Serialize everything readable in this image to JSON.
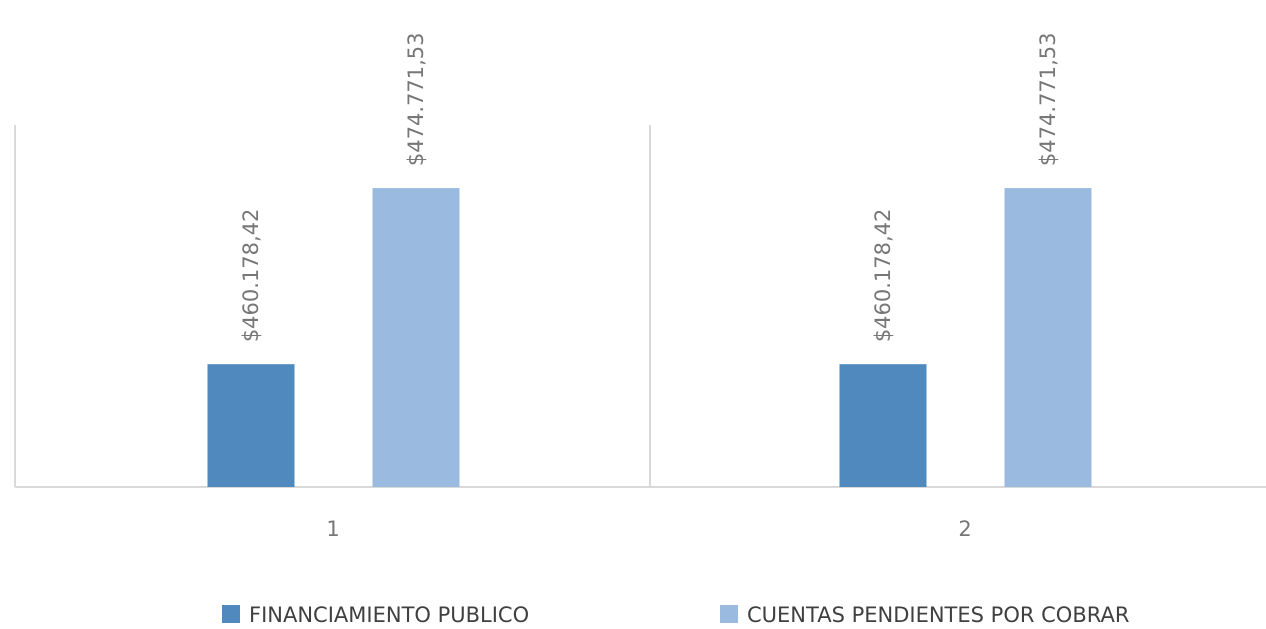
{
  "chart_data": {
    "type": "bar",
    "categories": [
      "1",
      "2"
    ],
    "series": [
      {
        "name": "FINANCIAMIENTO PUBLICO",
        "color": "#4f89bd",
        "values": [
          460178.42,
          460178.42
        ],
        "value_labels": [
          "$460.178,42",
          "$460.178,42"
        ]
      },
      {
        "name": "CUENTAS PENDIENTES POR COBRAR",
        "color": "#9bbadf",
        "values": [
          474771.53,
          474771.53
        ],
        "value_labels": [
          "$474.771,53",
          "$474.771,53"
        ]
      }
    ],
    "ylim": [
      450000,
      480000
    ]
  }
}
